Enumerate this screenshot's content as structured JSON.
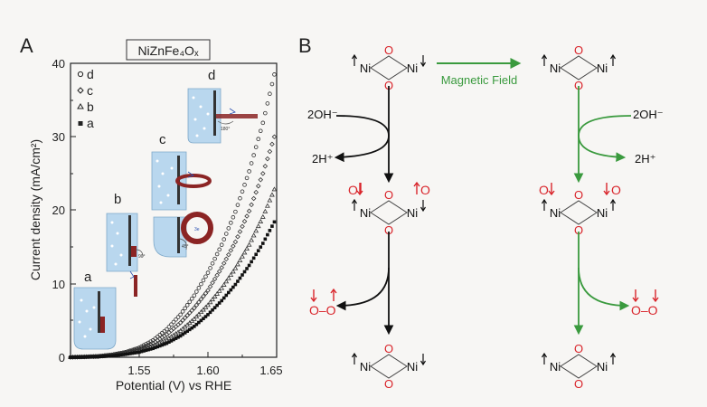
{
  "panel_a": {
    "letter": "A",
    "title": "NiZnFe₄Oₓ",
    "chart_data": {
      "type": "scatter",
      "title": "NiZnFe₄Oₓ",
      "xlabel": "Potential (V) vs RHE",
      "ylabel": "Current density (mA/cm²)",
      "xlim": [
        1.5,
        1.65
      ],
      "ylim": [
        0,
        40
      ],
      "x_ticks": [
        "1.55",
        "1.60",
        "1.65"
      ],
      "y_ticks": [
        "0",
        "10",
        "20",
        "30",
        "40"
      ],
      "legend_placement": "top-left",
      "series": [
        {
          "name": "d",
          "marker": "circle-open",
          "x": [
            1.5,
            1.51,
            1.52,
            1.53,
            1.54,
            1.55,
            1.56,
            1.57,
            1.58,
            1.59,
            1.6,
            1.61,
            1.62,
            1.63,
            1.64,
            1.65
          ],
          "y": [
            0,
            0.05,
            0.15,
            0.35,
            0.7,
            1.3,
            2.3,
            3.8,
            5.8,
            8.4,
            11.5,
            15.3,
            19.8,
            25.3,
            31.9,
            39.8
          ]
        },
        {
          "name": "c",
          "marker": "diamond-open",
          "x": [
            1.5,
            1.51,
            1.52,
            1.53,
            1.54,
            1.55,
            1.56,
            1.57,
            1.58,
            1.59,
            1.6,
            1.61,
            1.62,
            1.63,
            1.64,
            1.65
          ],
          "y": [
            0,
            0.05,
            0.1,
            0.3,
            0.6,
            1.1,
            1.9,
            3.1,
            4.7,
            6.7,
            9.1,
            12.2,
            15.7,
            19.9,
            25.0,
            31.0
          ]
        },
        {
          "name": "b",
          "marker": "triangle-open",
          "x": [
            1.5,
            1.51,
            1.52,
            1.53,
            1.54,
            1.55,
            1.56,
            1.57,
            1.58,
            1.59,
            1.6,
            1.61,
            1.62,
            1.63,
            1.64,
            1.65
          ],
          "y": [
            0,
            0.04,
            0.1,
            0.25,
            0.5,
            0.9,
            1.5,
            2.4,
            3.6,
            5.2,
            7.1,
            9.4,
            12.1,
            15.3,
            19.1,
            23.6
          ]
        },
        {
          "name": "a",
          "marker": "square-filled",
          "x": [
            1.5,
            1.51,
            1.52,
            1.53,
            1.54,
            1.55,
            1.56,
            1.57,
            1.58,
            1.59,
            1.6,
            1.61,
            1.62,
            1.63,
            1.64,
            1.65
          ],
          "y": [
            0,
            0.03,
            0.08,
            0.2,
            0.4,
            0.7,
            1.2,
            1.9,
            2.9,
            4.2,
            5.8,
            7.7,
            9.9,
            12.5,
            15.5,
            19.0
          ]
        }
      ],
      "annotations": [
        "a",
        "b",
        "c",
        "d"
      ]
    },
    "setup_labels": {
      "angle_b": "90°",
      "angle_c": "45°",
      "angle_d": "180°"
    }
  },
  "panel_b": {
    "letter": "B",
    "arrow_label": "Magnetic Field",
    "atoms": {
      "ni": "Ni",
      "o": "O",
      "o_o": "O–O"
    },
    "reactants": {
      "hydroxide": "2OH⁻",
      "proton": "2H⁺"
    }
  },
  "colors": {
    "oxygen": "#d9252b",
    "green": "#3a9a3e",
    "black": "#111111",
    "electrode": "#8b2424",
    "cell": "#b9d7ee",
    "background": "#f7f6f4"
  }
}
